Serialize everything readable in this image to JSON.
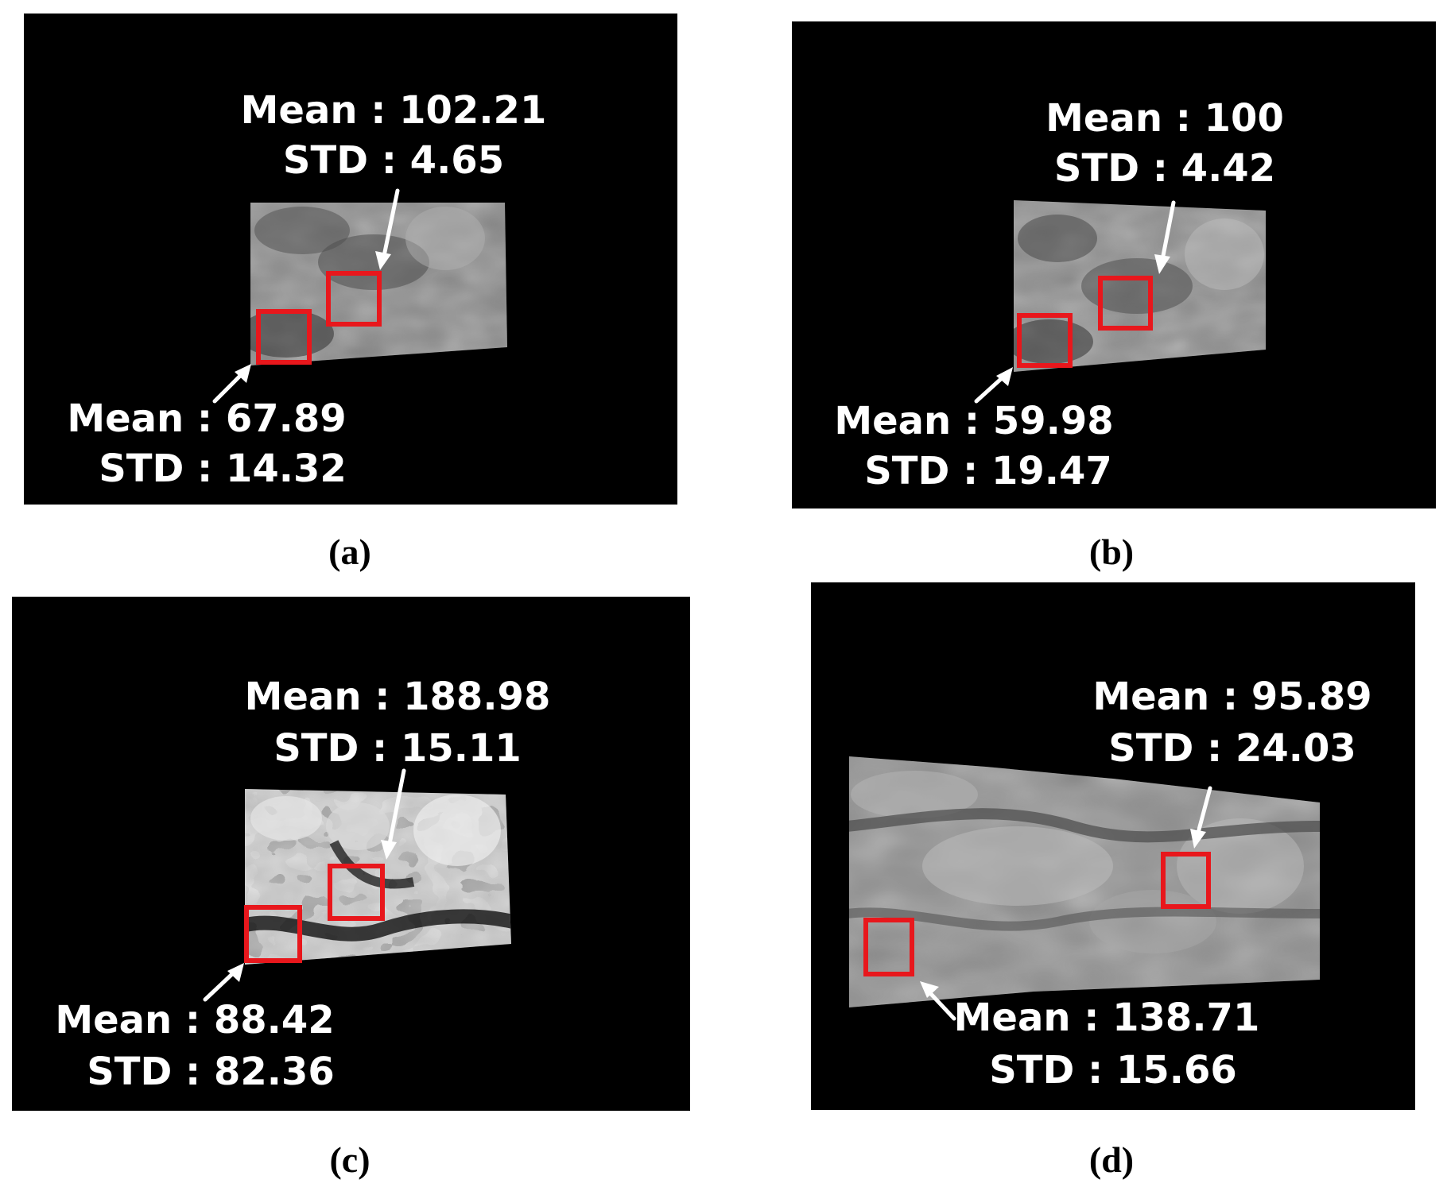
{
  "panels": [
    {
      "label": "a",
      "roi_upper": {
        "mean_text": "Mean : 102.21",
        "std_text": "STD : 4.65"
      },
      "roi_lower": {
        "mean_text": "Mean : 67.89",
        "std_text": "STD : 14.32"
      }
    },
    {
      "label": "b",
      "roi_upper": {
        "mean_text": "Mean : 100",
        "std_text": "STD : 4.42"
      },
      "roi_lower": {
        "mean_text": "Mean : 59.98",
        "std_text": "STD : 19.47"
      }
    },
    {
      "label": "c",
      "roi_upper": {
        "mean_text": "Mean : 188.98",
        "std_text": "STD : 15.11"
      },
      "roi_lower": {
        "mean_text": "Mean : 88.42",
        "std_text": "STD : 82.36"
      }
    },
    {
      "label": "d",
      "roi_upper": {
        "mean_text": "Mean : 95.89",
        "std_text": "STD : 24.03"
      },
      "roi_lower": {
        "mean_text": "Mean : 138.71",
        "std_text": "STD : 15.66"
      }
    }
  ],
  "colors": {
    "panel_background": "#000000",
    "roi_box": "#e8171c",
    "annotation_text": "#ffffff"
  }
}
